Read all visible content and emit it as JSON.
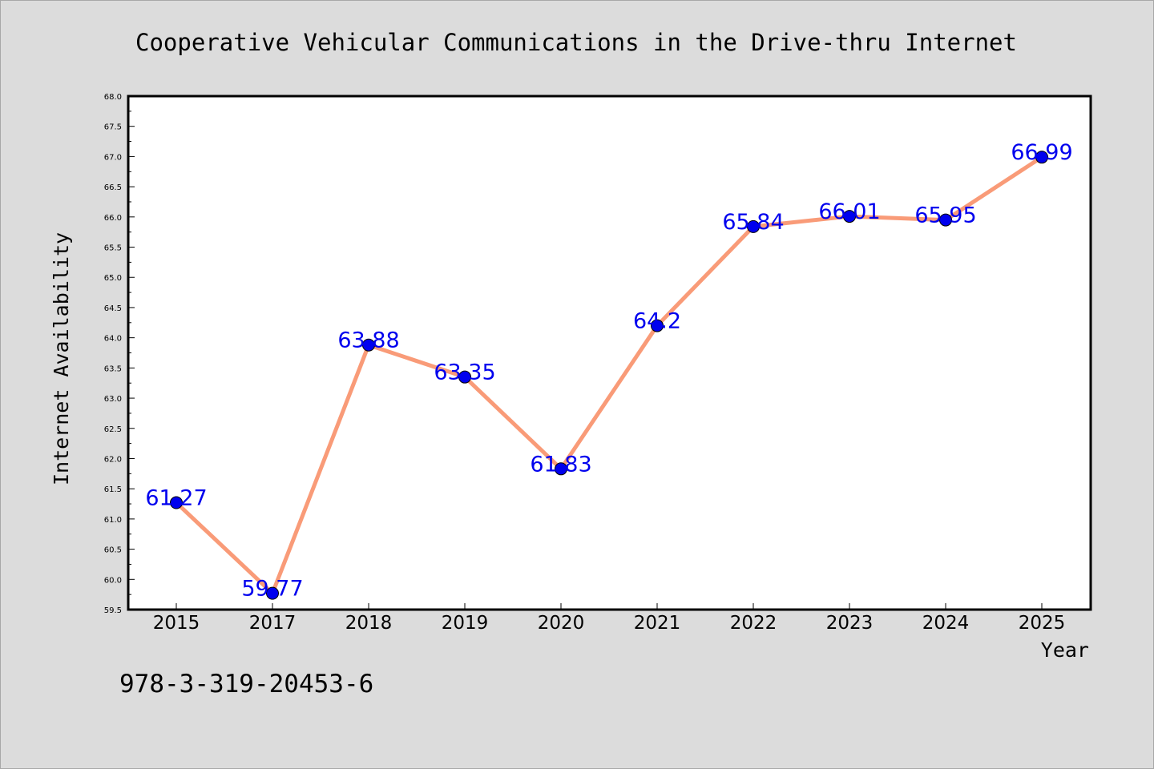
{
  "chart_data": {
    "type": "line",
    "title": "Cooperative Vehicular Communications in the Drive-thru Internet",
    "xlabel": "Year",
    "ylabel": "Internet Availability",
    "ylim": [
      59.5,
      68.0
    ],
    "y_ticks": [
      "59.5",
      "60.0",
      "60.5",
      "61.0",
      "61.5",
      "62.0",
      "62.5",
      "63.0",
      "63.5",
      "64.0",
      "64.5",
      "65.0",
      "65.5",
      "66.0",
      "66.5",
      "67.0",
      "67.5",
      "68.0"
    ],
    "categories": [
      "2015",
      "2017",
      "2018",
      "2019",
      "2020",
      "2021",
      "2022",
      "2023",
      "2024",
      "2025"
    ],
    "series": [
      {
        "values": [
          61.27,
          59.77,
          63.88,
          63.35,
          61.83,
          64.2,
          65.84,
          66.01,
          65.95,
          66.99
        ],
        "labels": [
          "61.27",
          "59.77",
          "63.88",
          "63.35",
          "61.83",
          "64.2",
          "65.84",
          "66.01",
          "65.95",
          "66.99"
        ],
        "line_color": "#f99b78",
        "marker_color": "#0000ee",
        "label_color": "#0000ee"
      }
    ],
    "grid": false,
    "legend": "none",
    "footnote": "978-3-319-20453-6"
  }
}
